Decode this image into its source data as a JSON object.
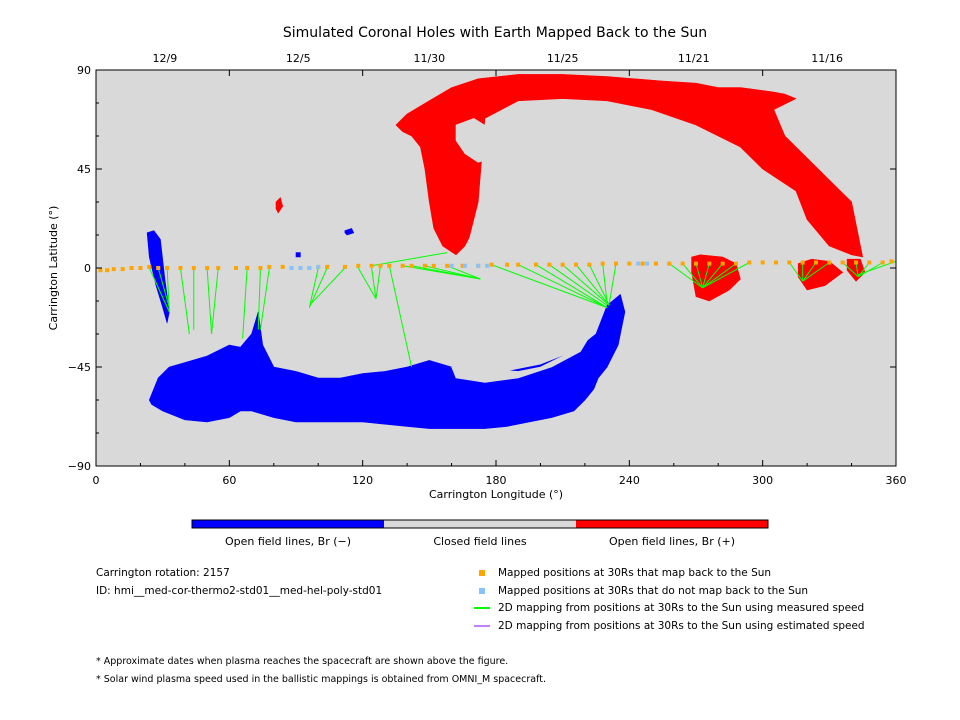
{
  "colors": {
    "background": "#d9d9d9",
    "open_negative": "#0000ff",
    "open_positive": "#ff0000",
    "closed": "#d9d9d9",
    "mapped": "#ffa500",
    "unmapped": "#87c3ff",
    "measured": "#00ff00",
    "estimated": "#c080ff"
  },
  "chart_data": {
    "type": "map",
    "title": "Simulated Coronal Holes with Earth Mapped Back to the Sun",
    "xlabel": "Carrington Longitude (°)",
    "ylabel": "Carrington Latitude (°)",
    "xlim": [
      0,
      360
    ],
    "ylim": [
      -90,
      90
    ],
    "xticks": [
      "0",
      "60",
      "120",
      "180",
      "240",
      "300",
      "360"
    ],
    "yticks": [
      "90",
      "45",
      "0",
      "-45",
      "-90"
    ],
    "top_axis_dates": [
      {
        "label": "12/9",
        "lon": 31
      },
      {
        "label": "12/5",
        "lon": 91
      },
      {
        "label": "11/30",
        "lon": 150
      },
      {
        "label": "11/25",
        "lon": 210
      },
      {
        "label": "11/21",
        "lon": 269
      },
      {
        "label": "11/16",
        "lon": 329
      }
    ],
    "coronal_holes": [
      {
        "polarity": "positive",
        "name": "north-polar-extension",
        "lon": [
          135,
          140,
          150,
          160,
          172,
          190,
          210,
          230,
          255,
          270,
          280,
          290,
          305,
          310,
          315,
          305,
          310,
          320,
          330,
          340,
          345,
          340,
          330,
          320,
          315,
          300,
          290,
          280,
          270,
          250,
          230,
          210,
          190,
          175,
          172,
          170,
          168,
          166,
          162,
          156,
          152,
          150,
          148,
          146,
          142,
          138,
          135
        ],
        "lat": [
          65,
          70,
          76,
          82,
          86,
          88,
          88,
          87,
          85,
          84,
          82,
          82,
          80,
          79,
          77,
          72,
          60,
          50,
          40,
          30,
          5,
          6,
          10,
          22,
          35,
          45,
          55,
          60,
          65,
          72,
          76,
          77,
          76,
          68,
          30,
          22,
          14,
          10,
          6,
          10,
          18,
          30,
          45,
          55,
          60,
          62,
          65
        ]
      },
      {
        "polarity": "closed",
        "name": "north-hole-window",
        "lon": [
          162,
          170,
          178,
          180,
          178,
          172,
          166,
          162
        ],
        "lat": [
          65,
          68,
          63,
          55,
          50,
          48,
          52,
          58
        ]
      },
      {
        "polarity": "positive",
        "name": "north-spot-1",
        "lon": [
          268,
          272,
          282,
          288,
          290,
          285,
          276,
          270,
          268
        ],
        "lat": [
          5,
          6,
          5,
          2,
          -5,
          -10,
          -15,
          -13,
          -2
        ]
      },
      {
        "polarity": "positive",
        "name": "north-spot-2",
        "lon": [
          316,
          322,
          330,
          336,
          328,
          320,
          316
        ],
        "lat": [
          2,
          4,
          3,
          -2,
          -8,
          -10,
          -4
        ]
      },
      {
        "polarity": "positive",
        "name": "north-spot-3",
        "lon": [
          338,
          344,
          346,
          342,
          338
        ],
        "lat": [
          4,
          4,
          -2,
          -6,
          -1
        ]
      },
      {
        "polarity": "positive",
        "name": "north-speck",
        "lon": [
          81,
          83,
          84,
          82,
          81
        ],
        "lat": [
          30,
          32,
          28,
          25,
          27
        ]
      },
      {
        "polarity": "negative",
        "name": "south-polar-extension",
        "lon": [
          24,
          28,
          33,
          40,
          50,
          60,
          65,
          70,
          73,
          75,
          80,
          90,
          100,
          110,
          120,
          130,
          140,
          150,
          160,
          170,
          180,
          200,
          215,
          225,
          230,
          236,
          238,
          235,
          230,
          226,
          224,
          220,
          215,
          205,
          195,
          185,
          175,
          165,
          150,
          140,
          130,
          120,
          110,
          100,
          90,
          80,
          70,
          65,
          60,
          50,
          40,
          30,
          25,
          24
        ],
        "lat": [
          -60,
          -50,
          -45,
          -43,
          -40,
          -35,
          -36,
          -30,
          -20,
          -35,
          -45,
          -47,
          -50,
          -50,
          -48,
          -47,
          -45,
          -42,
          -45,
          -47,
          -48,
          -44,
          -38,
          -30,
          -17,
          -12,
          -20,
          -35,
          -45,
          -50,
          -55,
          -60,
          -65,
          -68,
          -70,
          -72,
          -73,
          -73,
          -73,
          -72,
          -71,
          -70,
          -70,
          -70,
          -70,
          -68,
          -65,
          -65,
          -68,
          -70,
          -69,
          -65,
          -62,
          -60
        ]
      },
      {
        "polarity": "closed",
        "name": "south-hole-window",
        "lon": [
          160,
          175,
          190,
          200,
          210,
          220,
          224,
          218,
          205,
          190,
          175,
          162,
          160
        ],
        "lat": [
          -45,
          -46,
          -47,
          -45,
          -40,
          -33,
          -28,
          -38,
          -45,
          -50,
          -52,
          -50,
          -45
        ]
      },
      {
        "polarity": "negative",
        "name": "equatorial-finger-1",
        "lon": [
          23,
          26,
          29,
          31,
          33,
          32,
          30,
          27,
          24,
          23
        ],
        "lat": [
          16,
          17,
          13,
          -5,
          -20,
          -25,
          -18,
          -8,
          5,
          16
        ]
      },
      {
        "polarity": "negative",
        "name": "south-speck-1",
        "lon": [
          112,
          115,
          116,
          113,
          112
        ],
        "lat": [
          17,
          18,
          16,
          15,
          16
        ]
      },
      {
        "polarity": "negative",
        "name": "south-speck-2",
        "lon": [
          90,
          92,
          92,
          90,
          90
        ],
        "lat": [
          7,
          7,
          5,
          5,
          7
        ]
      }
    ],
    "mapped_points": {
      "lon": [
        2,
        5,
        8,
        12,
        16,
        20,
        24,
        28,
        32,
        38,
        44,
        50,
        55,
        63,
        68,
        74,
        78,
        84,
        88,
        92,
        96,
        100,
        104,
        112,
        118,
        124,
        128,
        132,
        138,
        142,
        148,
        152,
        158,
        165,
        172,
        178,
        185,
        190,
        198,
        204,
        210,
        216,
        222,
        228,
        234,
        240,
        246,
        252,
        258,
        264,
        270,
        276,
        282,
        288,
        294,
        300,
        306,
        312,
        318,
        324,
        330,
        336,
        342,
        348,
        354,
        358
      ],
      "lat": [
        -1,
        -1,
        -0.5,
        -0.5,
        0,
        0,
        0.5,
        0,
        0,
        0,
        0,
        0,
        0,
        0,
        0,
        0,
        0.5,
        0.5,
        0,
        0,
        0,
        0.5,
        0.5,
        0.5,
        1,
        1,
        1,
        1,
        1,
        1,
        1,
        1,
        1,
        1,
        1,
        1.5,
        1.5,
        1.5,
        1.5,
        1.5,
        1.5,
        1.5,
        1.5,
        2,
        2,
        2,
        2,
        2,
        2,
        2,
        2,
        2,
        2,
        2,
        2.5,
        2.5,
        2.5,
        2.5,
        2.5,
        2.5,
        2.5,
        2.5,
        2.5,
        2.5,
        2.5,
        3
      ]
    },
    "unmapped_points": {
      "lon": [
        88,
        92,
        96,
        100,
        160,
        166,
        172,
        176,
        244,
        248
      ],
      "lat": [
        0,
        0,
        0,
        0.5,
        1,
        1,
        1,
        1,
        2,
        2
      ]
    },
    "mapping_segments": [
      {
        "lon": [
          24,
          33
        ],
        "lat": [
          0,
          -20
        ]
      },
      {
        "lon": [
          28,
          33
        ],
        "lat": [
          0,
          -18
        ]
      },
      {
        "lon": [
          32,
          33
        ],
        "lat": [
          0,
          -20
        ]
      },
      {
        "lon": [
          38,
          42
        ],
        "lat": [
          0,
          -30
        ]
      },
      {
        "lon": [
          44,
          44
        ],
        "lat": [
          0,
          -28
        ]
      },
      {
        "lon": [
          50,
          52
        ],
        "lat": [
          0,
          -30
        ]
      },
      {
        "lon": [
          55,
          52
        ],
        "lat": [
          0,
          -30
        ]
      },
      {
        "lon": [
          68,
          66
        ],
        "lat": [
          0,
          -32
        ]
      },
      {
        "lon": [
          74,
          73
        ],
        "lat": [
          0,
          -28
        ]
      },
      {
        "lon": [
          78,
          74
        ],
        "lat": [
          0,
          -28
        ]
      },
      {
        "lon": [
          100,
          96
        ],
        "lat": [
          0,
          -18
        ]
      },
      {
        "lon": [
          104,
          96
        ],
        "lat": [
          0,
          -18
        ]
      },
      {
        "lon": [
          112,
          97
        ],
        "lat": [
          0,
          -16
        ]
      },
      {
        "lon": [
          118,
          126
        ],
        "lat": [
          0,
          -14
        ]
      },
      {
        "lon": [
          124,
          126
        ],
        "lat": [
          0,
          -14
        ]
      },
      {
        "lon": [
          128,
          126
        ],
        "lat": [
          1,
          -14
        ]
      },
      {
        "lon": [
          132,
          142
        ],
        "lat": [
          1,
          -45
        ]
      },
      {
        "lon": [
          138,
          173
        ],
        "lat": [
          1,
          -5
        ]
      },
      {
        "lon": [
          142,
          173
        ],
        "lat": [
          1,
          -5
        ]
      },
      {
        "lon": [
          148,
          173
        ],
        "lat": [
          1,
          -5
        ]
      },
      {
        "lon": [
          158,
          173
        ],
        "lat": [
          1,
          -5
        ]
      },
      {
        "lon": [
          124,
          158
        ],
        "lat": [
          1,
          7
        ]
      },
      {
        "lon": [
          178,
          230
        ],
        "lat": [
          1.5,
          -18
        ]
      },
      {
        "lon": [
          190,
          230
        ],
        "lat": [
          1.5,
          -18
        ]
      },
      {
        "lon": [
          198,
          230
        ],
        "lat": [
          1.5,
          -18
        ]
      },
      {
        "lon": [
          204,
          230
        ],
        "lat": [
          1.5,
          -17
        ]
      },
      {
        "lon": [
          210,
          231
        ],
        "lat": [
          1.5,
          -17
        ]
      },
      {
        "lon": [
          216,
          231
        ],
        "lat": [
          1.5,
          -17
        ]
      },
      {
        "lon": [
          222,
          231
        ],
        "lat": [
          1.5,
          -17
        ]
      },
      {
        "lon": [
          228,
          230
        ],
        "lat": [
          2,
          -16
        ]
      },
      {
        "lon": [
          234,
          231
        ],
        "lat": [
          2,
          -16
        ]
      },
      {
        "lon": [
          258,
          273
        ],
        "lat": [
          2,
          -9
        ]
      },
      {
        "lon": [
          264,
          273
        ],
        "lat": [
          2,
          -9
        ]
      },
      {
        "lon": [
          270,
          273
        ],
        "lat": [
          2,
          -9
        ]
      },
      {
        "lon": [
          276,
          273
        ],
        "lat": [
          2,
          -9
        ]
      },
      {
        "lon": [
          282,
          273
        ],
        "lat": [
          2,
          -9
        ]
      },
      {
        "lon": [
          288,
          273
        ],
        "lat": [
          2,
          -9
        ]
      },
      {
        "lon": [
          294,
          273
        ],
        "lat": [
          2.5,
          -9
        ]
      },
      {
        "lon": [
          312,
          318
        ],
        "lat": [
          2.5,
          -6
        ]
      },
      {
        "lon": [
          318,
          318
        ],
        "lat": [
          2.5,
          -6
        ]
      },
      {
        "lon": [
          324,
          318
        ],
        "lat": [
          2.5,
          -6
        ]
      },
      {
        "lon": [
          330,
          318
        ],
        "lat": [
          2.5,
          -6
        ]
      },
      {
        "lon": [
          336,
          343
        ],
        "lat": [
          2.5,
          -4
        ]
      },
      {
        "lon": [
          342,
          343
        ],
        "lat": [
          2.5,
          -4
        ]
      },
      {
        "lon": [
          348,
          343
        ],
        "lat": [
          2.5,
          -4
        ]
      },
      {
        "lon": [
          354,
          343
        ],
        "lat": [
          2.5,
          -4
        ]
      },
      {
        "lon": [
          360,
          343
        ],
        "lat": [
          3,
          -3
        ]
      }
    ]
  },
  "colorbar": {
    "labels": [
      "Open field lines, Br (−)",
      "Closed field lines",
      "Open field lines, Br (+)"
    ]
  },
  "info": {
    "rotation": "Carrington rotation: 2157",
    "id": "ID: hmi__med-cor-thermo2-std01__med-hel-poly-std01"
  },
  "legend": [
    {
      "kind": "square",
      "color_key": "mapped",
      "label": "Mapped positions at 30Rs that map back to the Sun"
    },
    {
      "kind": "square",
      "color_key": "unmapped",
      "label": "Mapped positions at 30Rs that do not map back to the Sun"
    },
    {
      "kind": "line",
      "color_key": "measured",
      "label": "2D mapping from positions at 30Rs to the Sun using measured speed"
    },
    {
      "kind": "line",
      "color_key": "estimated",
      "label": "2D mapping from positions at 30Rs to the Sun using estimated speed"
    }
  ],
  "footnotes": [
    "* Approximate dates when plasma reaches the spacecraft are shown above the figure.",
    "* Solar wind plasma speed used in the ballistic mappings is obtained from OMNI_M spacecraft."
  ]
}
